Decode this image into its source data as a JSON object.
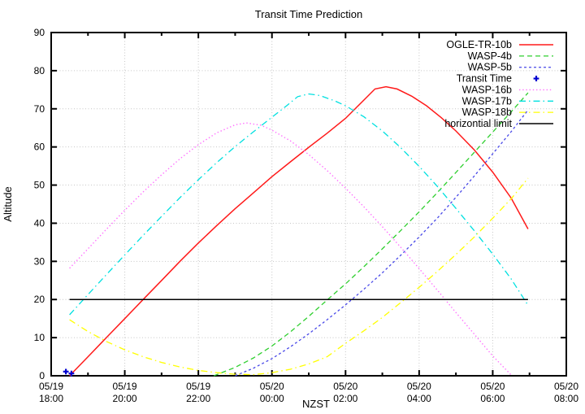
{
  "chart_data": {
    "type": "line",
    "title": "Transit Time Prediction",
    "xlabel": "NZST",
    "ylabel": "Altitude",
    "x_unit": "hours after 05/19 18:00 NZST",
    "x_range": [
      0,
      14
    ],
    "y_range": [
      0,
      90
    ],
    "grid": true,
    "legend_position": "top-right-inside",
    "grid_color": "#c6c6c6",
    "x_ticks": [
      {
        "hour": 0,
        "date": "05/19",
        "time": "18:00"
      },
      {
        "hour": 2,
        "date": "05/19",
        "time": "20:00"
      },
      {
        "hour": 4,
        "date": "05/19",
        "time": "22:00"
      },
      {
        "hour": 6,
        "date": "05/20",
        "time": "00:00"
      },
      {
        "hour": 8,
        "date": "05/20",
        "time": "02:00"
      },
      {
        "hour": 10,
        "date": "05/20",
        "time": "04:00"
      },
      {
        "hour": 12,
        "date": "05/20",
        "time": "06:00"
      },
      {
        "hour": 14,
        "date": "05/20",
        "time": "08:00"
      }
    ],
    "x_minor_tick_hours": [
      1,
      3,
      5,
      7,
      9,
      11,
      13
    ],
    "y_ticks": [
      0,
      10,
      20,
      30,
      40,
      50,
      60,
      70,
      80,
      90
    ],
    "series": [
      {
        "name": "OGLE-TR-10b",
        "color": "#ff1a1a",
        "style": "solid",
        "width": 1.5,
        "points": [
          [
            0.5,
            0
          ],
          [
            1,
            5
          ],
          [
            1.5,
            10
          ],
          [
            2,
            15
          ],
          [
            2.5,
            20
          ],
          [
            3,
            25
          ],
          [
            3.5,
            30
          ],
          [
            4,
            34.8
          ],
          [
            4.5,
            39.4
          ],
          [
            5,
            43.8
          ],
          [
            5.5,
            48
          ],
          [
            6,
            52.2
          ],
          [
            6.5,
            56.1
          ],
          [
            7,
            59.9
          ],
          [
            7.5,
            63.6
          ],
          [
            8,
            67.5
          ],
          [
            8.5,
            72.3
          ],
          [
            8.8,
            75.2
          ],
          [
            9.1,
            75.8
          ],
          [
            9.4,
            75.2
          ],
          [
            9.8,
            73.3
          ],
          [
            10.2,
            70.8
          ],
          [
            10.6,
            67.7
          ],
          [
            11,
            64.2
          ],
          [
            11.5,
            59.2
          ],
          [
            12,
            53.4
          ],
          [
            12.5,
            46.6
          ],
          [
            12.96,
            38.5
          ]
        ]
      },
      {
        "name": "WASP-4b",
        "color": "#2fcf2f",
        "style": "dashed",
        "dash": "6,4",
        "width": 1.3,
        "points": [
          [
            4.42,
            0
          ],
          [
            5,
            2.2
          ],
          [
            5.5,
            4.7
          ],
          [
            6,
            7.8
          ],
          [
            6.5,
            11.5
          ],
          [
            7,
            15.6
          ],
          [
            7.55,
            20.3
          ],
          [
            8,
            24.1
          ],
          [
            8.5,
            28.6
          ],
          [
            9,
            33.3
          ],
          [
            9.5,
            38.1
          ],
          [
            10,
            43
          ],
          [
            10.5,
            48.1
          ],
          [
            11,
            53.3
          ],
          [
            11.5,
            58.6
          ],
          [
            12,
            63.9
          ],
          [
            12.5,
            69.2
          ],
          [
            12.96,
            74.2
          ]
        ]
      },
      {
        "name": "WASP-5b",
        "color": "#4848e8",
        "style": "short-dashed",
        "dash": "3,3",
        "width": 1.3,
        "points": [
          [
            5,
            0
          ],
          [
            5.5,
            2
          ],
          [
            6,
            4.5
          ],
          [
            6.5,
            7.6
          ],
          [
            7,
            11
          ],
          [
            7.5,
            14.7
          ],
          [
            8,
            18.6
          ],
          [
            8.5,
            22.7
          ],
          [
            9,
            27
          ],
          [
            9.5,
            31.6
          ],
          [
            10,
            36.4
          ],
          [
            10.5,
            41.4
          ],
          [
            11,
            46.8
          ],
          [
            11.5,
            52.4
          ],
          [
            12,
            58.2
          ],
          [
            12.5,
            64
          ],
          [
            12.96,
            69.7
          ]
        ]
      },
      {
        "name": "Transit Time",
        "color": "#0000d0",
        "style": "plus-marker",
        "width": 2.2,
        "marker_points": [
          [
            0.4,
            1.1
          ],
          [
            0.55,
            0.6
          ]
        ]
      },
      {
        "name": "WASP-16b",
        "color": "#ff6eff",
        "style": "dotted",
        "dash": "1.4,2.8",
        "width": 1.4,
        "points": [
          [
            0.5,
            28.2
          ],
          [
            1,
            33.3
          ],
          [
            1.5,
            38.4
          ],
          [
            2,
            43.4
          ],
          [
            2.5,
            48.2
          ],
          [
            3,
            52.7
          ],
          [
            3.5,
            56.9
          ],
          [
            4,
            60.6
          ],
          [
            4.5,
            63.7
          ],
          [
            5,
            65.8
          ],
          [
            5.3,
            66.3
          ],
          [
            5.7,
            65.7
          ],
          [
            6,
            64.4
          ],
          [
            6.5,
            61.6
          ],
          [
            7,
            58
          ],
          [
            7.5,
            53.8
          ],
          [
            8,
            49.2
          ],
          [
            8.5,
            44.3
          ],
          [
            9,
            39.1
          ],
          [
            9.5,
            33.7
          ],
          [
            10,
            28.1
          ],
          [
            10.5,
            22.4
          ],
          [
            11,
            16.6
          ],
          [
            11.5,
            10.9
          ],
          [
            12,
            5.2
          ],
          [
            12.52,
            0
          ]
        ]
      },
      {
        "name": "WASP-17b",
        "color": "#00e0e0",
        "style": "dash-dot",
        "dash": "8,4,1.5,4",
        "width": 1.3,
        "points": [
          [
            0.5,
            16
          ],
          [
            1,
            21.3
          ],
          [
            1.5,
            26.5
          ],
          [
            2,
            31.7
          ],
          [
            2.5,
            36.8
          ],
          [
            3,
            41.8
          ],
          [
            3.5,
            46.7
          ],
          [
            4,
            51.4
          ],
          [
            4.5,
            55.9
          ],
          [
            5,
            60.1
          ],
          [
            5.5,
            64
          ],
          [
            6,
            67.8
          ],
          [
            6.4,
            70.8
          ],
          [
            6.7,
            73.2
          ],
          [
            7,
            73.9
          ],
          [
            7.3,
            73.5
          ],
          [
            7.7,
            72.1
          ],
          [
            8,
            70.8
          ],
          [
            8.5,
            67.9
          ],
          [
            9,
            64.2
          ],
          [
            9.5,
            59.8
          ],
          [
            10,
            54.9
          ],
          [
            10.5,
            49.6
          ],
          [
            11,
            43.9
          ],
          [
            11.5,
            38
          ],
          [
            12,
            31.9
          ],
          [
            12.5,
            25.4
          ],
          [
            12.96,
            18.5
          ]
        ]
      },
      {
        "name": "WASP-18b",
        "color": "#ffff00",
        "style": "dash-dot",
        "dash": "8,4,1.5,4",
        "width": 1.3,
        "points": [
          [
            0.5,
            14.7
          ],
          [
            1,
            11.6
          ],
          [
            1.5,
            9
          ],
          [
            2,
            6.8
          ],
          [
            2.5,
            5
          ],
          [
            3,
            3.5
          ],
          [
            3.5,
            2.3
          ],
          [
            4,
            1.4
          ],
          [
            4.5,
            0.8
          ],
          [
            5,
            0.4
          ],
          [
            5.5,
            0.3
          ],
          [
            6,
            0.8
          ],
          [
            6.5,
            1.7
          ],
          [
            7,
            3.1
          ],
          [
            7.5,
            5
          ],
          [
            8,
            8.5
          ],
          [
            8.5,
            11.8
          ],
          [
            9,
            15.3
          ],
          [
            9.5,
            19.2
          ],
          [
            10,
            23.2
          ],
          [
            10.5,
            27.4
          ],
          [
            11,
            31.8
          ],
          [
            11.5,
            36.4
          ],
          [
            12,
            41.3
          ],
          [
            12.5,
            46.4
          ],
          [
            12.96,
            51.8
          ]
        ]
      },
      {
        "name": "horizontial limit",
        "color": "#000000",
        "style": "solid",
        "width": 1.5,
        "points": [
          [
            0.5,
            20
          ],
          [
            12.96,
            20
          ]
        ]
      }
    ]
  },
  "legend": {
    "entries": [
      "OGLE-TR-10b",
      "WASP-4b",
      "WASP-5b",
      "Transit Time",
      "WASP-16b",
      "WASP-17b",
      "WASP-18b",
      "horizontial limit"
    ]
  }
}
